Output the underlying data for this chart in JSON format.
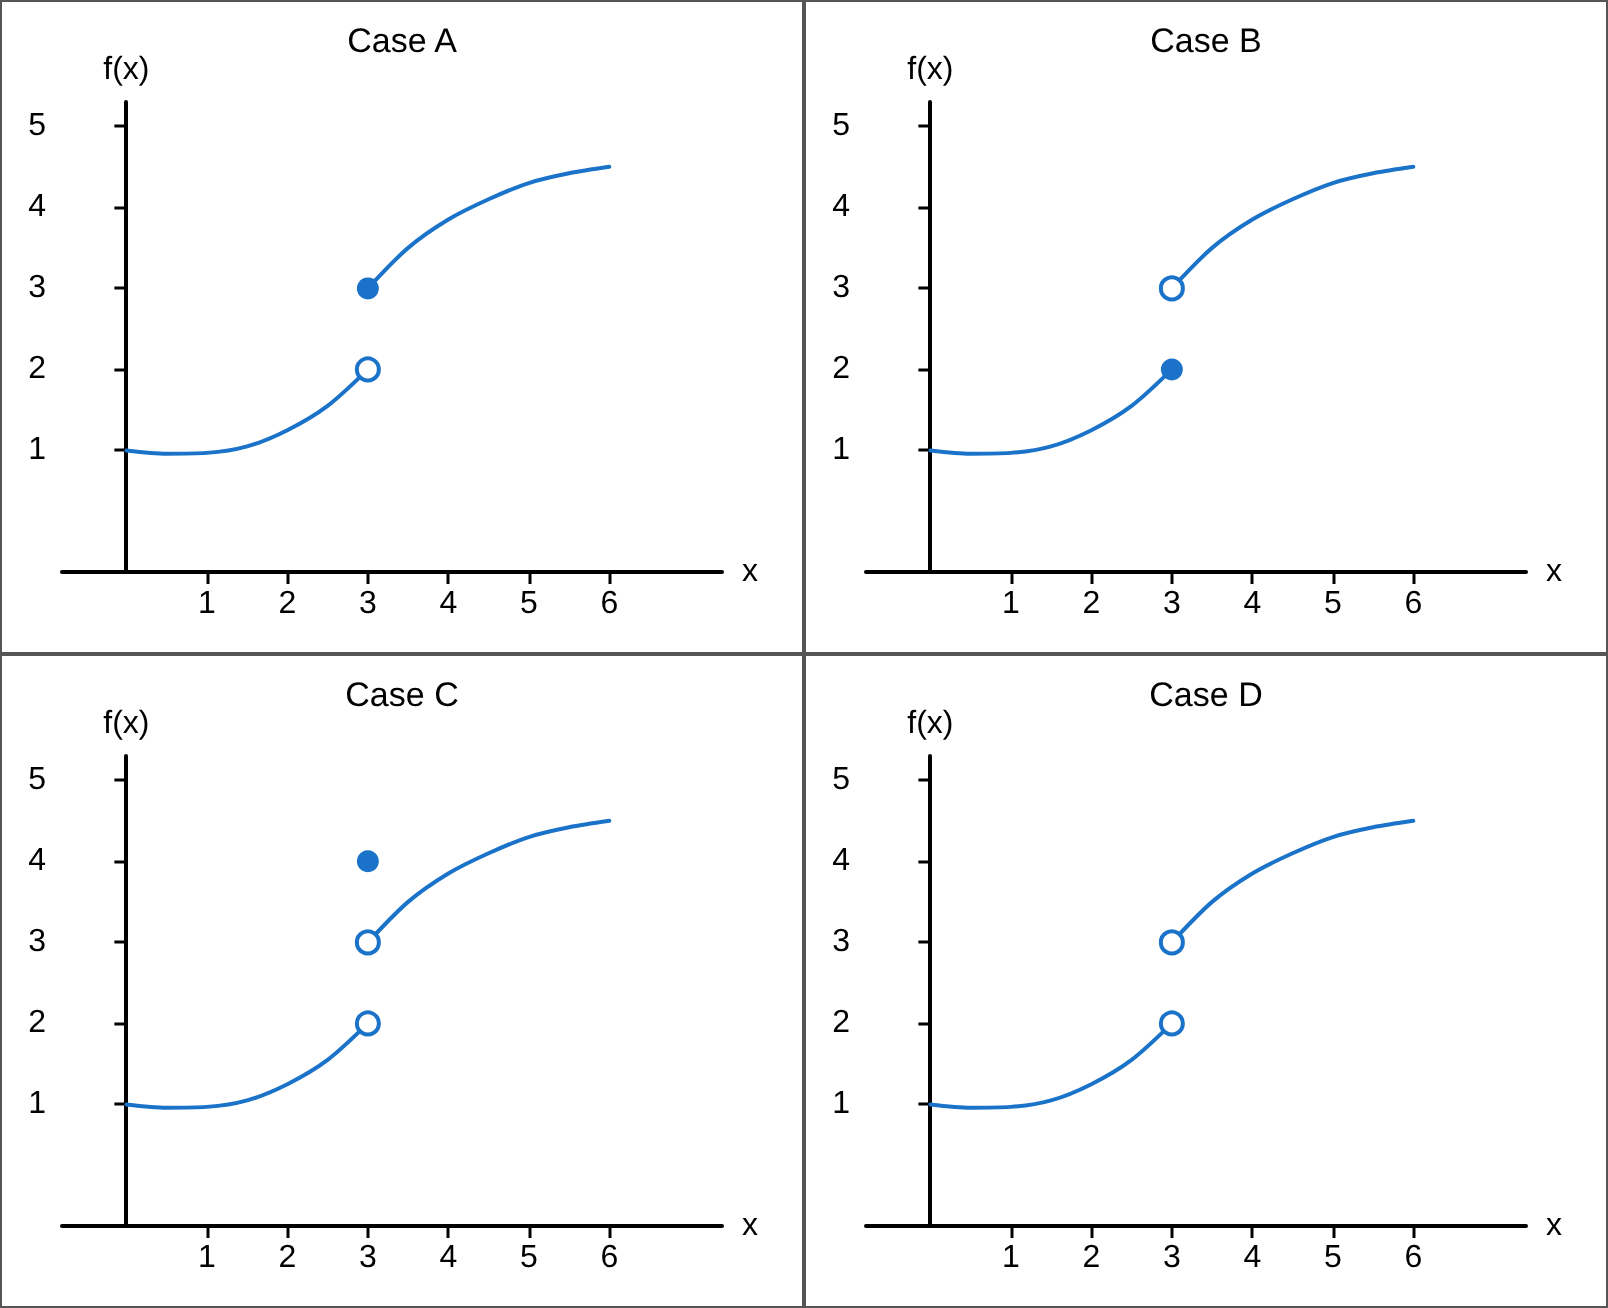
{
  "chart_data": [
    {
      "type": "line",
      "title": "Case A",
      "xlabel": "x",
      "ylabel": "f(x)",
      "xlim": [
        -0.8,
        7.4
      ],
      "ylim": [
        -0.5,
        5.3
      ],
      "xticks": [
        1,
        2,
        3,
        4,
        5,
        6
      ],
      "yticks": [
        1,
        2,
        3,
        4,
        5
      ],
      "grid": false,
      "line_style": "solid",
      "series": [
        {
          "type": "line",
          "marker": "none",
          "color": "#1a73c8",
          "x": [
            0,
            0.5,
            1,
            1.5,
            2,
            2.5,
            3
          ],
          "values": [
            1,
            0.96,
            0.97,
            1.05,
            1.25,
            1.55,
            2
          ]
        },
        {
          "type": "line",
          "marker": "none",
          "color": "#1a73c8",
          "x": [
            3,
            3.5,
            4,
            4.5,
            5,
            5.5,
            6
          ],
          "values": [
            3,
            3.5,
            3.85,
            4.1,
            4.3,
            4.42,
            4.5
          ]
        },
        {
          "type": "scatter",
          "marker": "open circle",
          "color": "#1a73c8",
          "x": [
            3
          ],
          "values": [
            2
          ]
        },
        {
          "type": "scatter",
          "marker": "circle",
          "color": "#1a73c8",
          "x": [
            3
          ],
          "values": [
            3
          ]
        }
      ]
    },
    {
      "type": "line",
      "title": "Case B",
      "xlabel": "x",
      "ylabel": "f(x)",
      "xlim": [
        -0.8,
        7.4
      ],
      "ylim": [
        -0.5,
        5.3
      ],
      "xticks": [
        1,
        2,
        3,
        4,
        5,
        6
      ],
      "yticks": [
        1,
        2,
        3,
        4,
        5
      ],
      "grid": false,
      "line_style": "solid",
      "series": [
        {
          "type": "line",
          "marker": "none",
          "color": "#1a73c8",
          "x": [
            0,
            0.5,
            1,
            1.5,
            2,
            2.5,
            3
          ],
          "values": [
            1,
            0.96,
            0.97,
            1.05,
            1.25,
            1.55,
            2
          ]
        },
        {
          "type": "line",
          "marker": "none",
          "color": "#1a73c8",
          "x": [
            3,
            3.5,
            4,
            4.5,
            5,
            5.5,
            6
          ],
          "values": [
            3,
            3.5,
            3.85,
            4.1,
            4.3,
            4.42,
            4.5
          ]
        },
        {
          "type": "scatter",
          "marker": "open circle",
          "color": "#1a73c8",
          "x": [
            3
          ],
          "values": [
            3
          ]
        },
        {
          "type": "scatter",
          "marker": "circle",
          "color": "#1a73c8",
          "x": [
            3
          ],
          "values": [
            2
          ]
        }
      ]
    },
    {
      "type": "line",
      "title": "Case C",
      "xlabel": "x",
      "ylabel": "f(x)",
      "xlim": [
        -0.8,
        7.4
      ],
      "ylim": [
        -0.5,
        5.3
      ],
      "xticks": [
        1,
        2,
        3,
        4,
        5,
        6
      ],
      "yticks": [
        1,
        2,
        3,
        4,
        5
      ],
      "grid": false,
      "line_style": "solid",
      "series": [
        {
          "type": "line",
          "marker": "none",
          "color": "#1a73c8",
          "x": [
            0,
            0.5,
            1,
            1.5,
            2,
            2.5,
            3
          ],
          "values": [
            1,
            0.96,
            0.97,
            1.05,
            1.25,
            1.55,
            2
          ]
        },
        {
          "type": "line",
          "marker": "none",
          "color": "#1a73c8",
          "x": [
            3,
            3.5,
            4,
            4.5,
            5,
            5.5,
            6
          ],
          "values": [
            3,
            3.5,
            3.85,
            4.1,
            4.3,
            4.42,
            4.5
          ]
        },
        {
          "type": "scatter",
          "marker": "open circle",
          "color": "#1a73c8",
          "x": [
            3,
            3
          ],
          "values": [
            2,
            3
          ]
        },
        {
          "type": "scatter",
          "marker": "circle",
          "color": "#1a73c8",
          "x": [
            3
          ],
          "values": [
            4
          ]
        }
      ]
    },
    {
      "type": "line",
      "title": "Case D",
      "xlabel": "x",
      "ylabel": "f(x)",
      "xlim": [
        -0.8,
        7.4
      ],
      "ylim": [
        -0.5,
        5.3
      ],
      "xticks": [
        1,
        2,
        3,
        4,
        5,
        6
      ],
      "yticks": [
        1,
        2,
        3,
        4,
        5
      ],
      "grid": false,
      "line_style": "solid",
      "series": [
        {
          "type": "line",
          "marker": "none",
          "color": "#1a73c8",
          "x": [
            0,
            0.5,
            1,
            1.5,
            2,
            2.5,
            3
          ],
          "values": [
            1,
            0.96,
            0.97,
            1.05,
            1.25,
            1.55,
            2
          ]
        },
        {
          "type": "line",
          "marker": "none",
          "color": "#1a73c8",
          "x": [
            3,
            3.5,
            4,
            4.5,
            5,
            5.5,
            6
          ],
          "values": [
            3,
            3.5,
            3.85,
            4.1,
            4.3,
            4.42,
            4.5
          ]
        },
        {
          "type": "scatter",
          "marker": "open circle",
          "color": "#1a73c8",
          "x": [
            3,
            3
          ],
          "values": [
            2,
            3
          ]
        }
      ]
    }
  ]
}
